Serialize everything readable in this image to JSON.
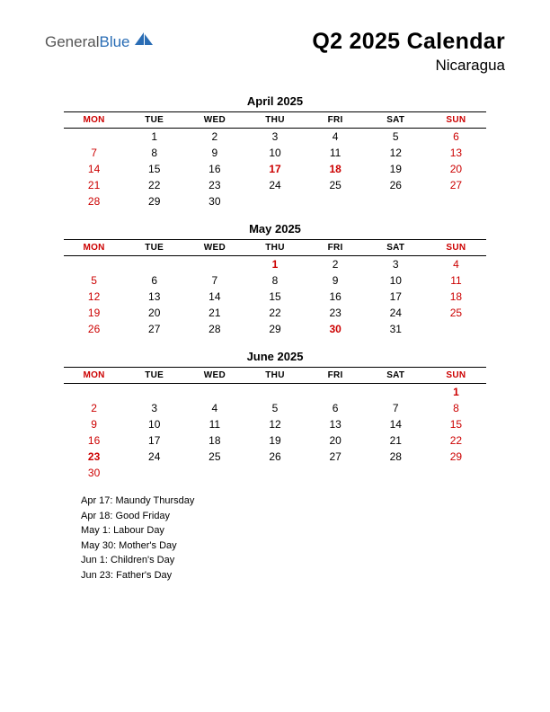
{
  "logo": {
    "general": "General",
    "blue": "Blue",
    "shape_color": "#2a6db5"
  },
  "title": "Q2 2025 Calendar",
  "subtitle": "Nicaragua",
  "day_headers": [
    "MON",
    "TUE",
    "WED",
    "THU",
    "FRI",
    "SAT",
    "SUN"
  ],
  "colors": {
    "text": "#000000",
    "red": "#cc0000",
    "background": "#ffffff",
    "rule": "#000000"
  },
  "months": [
    {
      "name": "April 2025",
      "weeks": [
        [
          {
            "d": ""
          },
          {
            "d": "1"
          },
          {
            "d": "2"
          },
          {
            "d": "3"
          },
          {
            "d": "4"
          },
          {
            "d": "5"
          },
          {
            "d": "6",
            "c": "red"
          }
        ],
        [
          {
            "d": "7",
            "c": "red"
          },
          {
            "d": "8"
          },
          {
            "d": "9"
          },
          {
            "d": "10"
          },
          {
            "d": "11"
          },
          {
            "d": "12"
          },
          {
            "d": "13",
            "c": "red"
          }
        ],
        [
          {
            "d": "14",
            "c": "red"
          },
          {
            "d": "15"
          },
          {
            "d": "16"
          },
          {
            "d": "17",
            "c": "redbold"
          },
          {
            "d": "18",
            "c": "redbold"
          },
          {
            "d": "19"
          },
          {
            "d": "20",
            "c": "red"
          }
        ],
        [
          {
            "d": "21",
            "c": "red"
          },
          {
            "d": "22"
          },
          {
            "d": "23"
          },
          {
            "d": "24"
          },
          {
            "d": "25"
          },
          {
            "d": "26"
          },
          {
            "d": "27",
            "c": "red"
          }
        ],
        [
          {
            "d": "28",
            "c": "red"
          },
          {
            "d": "29"
          },
          {
            "d": "30"
          },
          {
            "d": ""
          },
          {
            "d": ""
          },
          {
            "d": ""
          },
          {
            "d": ""
          }
        ]
      ]
    },
    {
      "name": "May 2025",
      "weeks": [
        [
          {
            "d": ""
          },
          {
            "d": ""
          },
          {
            "d": ""
          },
          {
            "d": "1",
            "c": "redbold"
          },
          {
            "d": "2"
          },
          {
            "d": "3"
          },
          {
            "d": "4",
            "c": "red"
          }
        ],
        [
          {
            "d": "5",
            "c": "red"
          },
          {
            "d": "6"
          },
          {
            "d": "7"
          },
          {
            "d": "8"
          },
          {
            "d": "9"
          },
          {
            "d": "10"
          },
          {
            "d": "11",
            "c": "red"
          }
        ],
        [
          {
            "d": "12",
            "c": "red"
          },
          {
            "d": "13"
          },
          {
            "d": "14"
          },
          {
            "d": "15"
          },
          {
            "d": "16"
          },
          {
            "d": "17"
          },
          {
            "d": "18",
            "c": "red"
          }
        ],
        [
          {
            "d": "19",
            "c": "red"
          },
          {
            "d": "20"
          },
          {
            "d": "21"
          },
          {
            "d": "22"
          },
          {
            "d": "23"
          },
          {
            "d": "24"
          },
          {
            "d": "25",
            "c": "red"
          }
        ],
        [
          {
            "d": "26",
            "c": "red"
          },
          {
            "d": "27"
          },
          {
            "d": "28"
          },
          {
            "d": "29"
          },
          {
            "d": "30",
            "c": "redbold"
          },
          {
            "d": "31"
          },
          {
            "d": ""
          }
        ]
      ]
    },
    {
      "name": "June 2025",
      "weeks": [
        [
          {
            "d": ""
          },
          {
            "d": ""
          },
          {
            "d": ""
          },
          {
            "d": ""
          },
          {
            "d": ""
          },
          {
            "d": ""
          },
          {
            "d": "1",
            "c": "redbold"
          }
        ],
        [
          {
            "d": "2",
            "c": "red"
          },
          {
            "d": "3"
          },
          {
            "d": "4"
          },
          {
            "d": "5"
          },
          {
            "d": "6"
          },
          {
            "d": "7"
          },
          {
            "d": "8",
            "c": "red"
          }
        ],
        [
          {
            "d": "9",
            "c": "red"
          },
          {
            "d": "10"
          },
          {
            "d": "11"
          },
          {
            "d": "12"
          },
          {
            "d": "13"
          },
          {
            "d": "14"
          },
          {
            "d": "15",
            "c": "red"
          }
        ],
        [
          {
            "d": "16",
            "c": "red"
          },
          {
            "d": "17"
          },
          {
            "d": "18"
          },
          {
            "d": "19"
          },
          {
            "d": "20"
          },
          {
            "d": "21"
          },
          {
            "d": "22",
            "c": "red"
          }
        ],
        [
          {
            "d": "23",
            "c": "redbold"
          },
          {
            "d": "24"
          },
          {
            "d": "25"
          },
          {
            "d": "26"
          },
          {
            "d": "27"
          },
          {
            "d": "28"
          },
          {
            "d": "29",
            "c": "red"
          }
        ],
        [
          {
            "d": "30",
            "c": "red"
          },
          {
            "d": ""
          },
          {
            "d": ""
          },
          {
            "d": ""
          },
          {
            "d": ""
          },
          {
            "d": ""
          },
          {
            "d": ""
          }
        ]
      ]
    }
  ],
  "holidays": [
    "Apr 17: Maundy Thursday",
    "Apr 18: Good Friday",
    "May 1: Labour Day",
    "May 30: Mother's Day",
    "Jun 1: Children's Day",
    "Jun 23: Father's Day"
  ]
}
